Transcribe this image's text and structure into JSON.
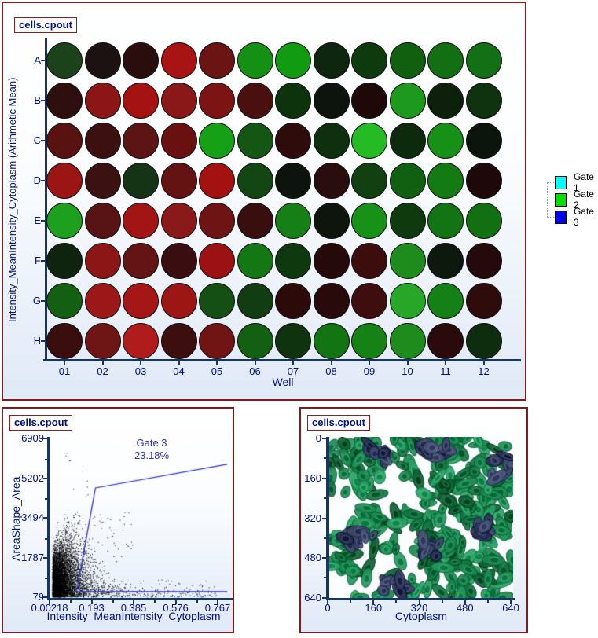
{
  "window": {
    "bg": "#ffffff",
    "panel_border_color": "#7d1e1e",
    "axis_color": "#17365f",
    "label_color": "#000f82",
    "gate_annotation_color": "#2d2dcb"
  },
  "chart_data": [
    {
      "type": "heatmap",
      "title": "cells.cpout",
      "xlabel": "Well",
      "ylabel": "Intensity_MeanIntensity_Cytoplasm  (Arithmetic Mean)",
      "x_categories": [
        "01",
        "02",
        "03",
        "04",
        "05",
        "06",
        "07",
        "08",
        "09",
        "10",
        "11",
        "12"
      ],
      "y_categories": [
        "A",
        "B",
        "C",
        "D",
        "E",
        "F",
        "G",
        "H"
      ],
      "cell_colors": [
        [
          "#1b421b",
          "#1d1212",
          "#2a0e0e",
          "#a81414",
          "#6b1414",
          "#149114",
          "#109b10",
          "#0d260d",
          "#0d3b0d",
          "#106010",
          "#127012",
          "#147014"
        ],
        [
          "#2e0e0e",
          "#8c1616",
          "#a51212",
          "#8a1818",
          "#7c1414",
          "#4a1010",
          "#0d330d",
          "#0d130d",
          "#1e0808",
          "#1d9a1d",
          "#0c200c",
          "#0e330e"
        ],
        [
          "#581212",
          "#3c1010",
          "#5c1414",
          "#6b1010",
          "#16a016",
          "#145614",
          "#2f0c0c",
          "#0e300e",
          "#25bb25",
          "#0d2a0d",
          "#169016",
          "#0c150c"
        ],
        [
          "#9b1515",
          "#3c1111",
          "#153315",
          "#651212",
          "#a31111",
          "#124612",
          "#0d140d",
          "#2a0d0d",
          "#114011",
          "#116011",
          "#147a14",
          "#1d0909"
        ],
        [
          "#1da01d",
          "#581414",
          "#a31414",
          "#8a1a1a",
          "#6e1414",
          "#380e0e",
          "#168016",
          "#0d150d",
          "#179117",
          "#0e3a0e",
          "#137413",
          "#127012"
        ],
        [
          "#0e240e",
          "#8c1616",
          "#641414",
          "#3a0e10",
          "#9c1212",
          "#137813",
          "#0e380e",
          "#260a0a",
          "#3c0d0d",
          "#1d8c1d",
          "#0c190c",
          "#240a0a"
        ],
        [
          "#136013",
          "#9c1818",
          "#a51616",
          "#9c1616",
          "#144f14",
          "#123c12",
          "#2c0a0a",
          "#280a0a",
          "#3e0e0e",
          "#27a627",
          "#158015",
          "#2e0c0c"
        ],
        [
          "#3a0e0e",
          "#6e1616",
          "#b01c1c",
          "#3c0e0e",
          "#701414",
          "#136013",
          "#0e330e",
          "#127412",
          "#168216",
          "#1d8c1d",
          "#2a0a0a",
          "#0e2c0e"
        ]
      ],
      "legend": {
        "items": [
          {
            "label": "Gate 1",
            "color": "#00FFFF"
          },
          {
            "label": "Gate 2",
            "color": "#00E000"
          },
          {
            "label": "Gate 3",
            "color": "#0000EE"
          }
        ]
      }
    },
    {
      "type": "scatter",
      "title": "cells.cpout",
      "xlabel": "Intensity_MeanIntensity_Cytoplasm",
      "ylabel": "AreaShape_Area",
      "x_ticks": [
        "0.00218",
        "0.193",
        "0.385",
        "0.576",
        "0.767"
      ],
      "y_ticks": [
        "79",
        "1787",
        "3494",
        "5202",
        "6909"
      ],
      "xlim": [
        0.00218,
        0.81
      ],
      "ylim": [
        79,
        6909
      ],
      "point_color": "#000000",
      "gate": {
        "name": "Gate 3",
        "percent": "23.18%",
        "color": "#2d2dcb",
        "boundary": [
          [
            0.125,
            315
          ],
          [
            0.211,
            4780
          ],
          [
            0.81,
            5800
          ]
        ],
        "baseline": {
          "y": 315,
          "x_from": 0.125,
          "x_to": 0.81
        }
      },
      "density_model": {
        "seed": 42,
        "n_core": 6500,
        "x_exp_mean": 0.05,
        "x_offset": 0.015,
        "y_base": 95,
        "y_peak_x": 0.115,
        "y_sigma": 0.105,
        "y_amp": 850,
        "n_sprinkle": 300,
        "n_mid_outliers": 70,
        "n_high_outliers": 12
      }
    },
    {
      "type": "image",
      "title": "cells.cpout",
      "xlabel": "Cytoplasm",
      "x_ticks": [
        "0",
        "160",
        "320",
        "480",
        "640"
      ],
      "y_ticks": [
        "0",
        "160",
        "320",
        "480",
        "640"
      ],
      "bg": "#fcfdff",
      "cell_palette": [
        "#1d8550",
        "#27955d",
        "#147243",
        "#2ea167",
        "#0e5e36",
        "#1f8a55"
      ],
      "nucleus_palette": [
        "#333c60",
        "#3d4668",
        "#2a3254",
        "#4a5478"
      ],
      "seed": 7
    }
  ]
}
